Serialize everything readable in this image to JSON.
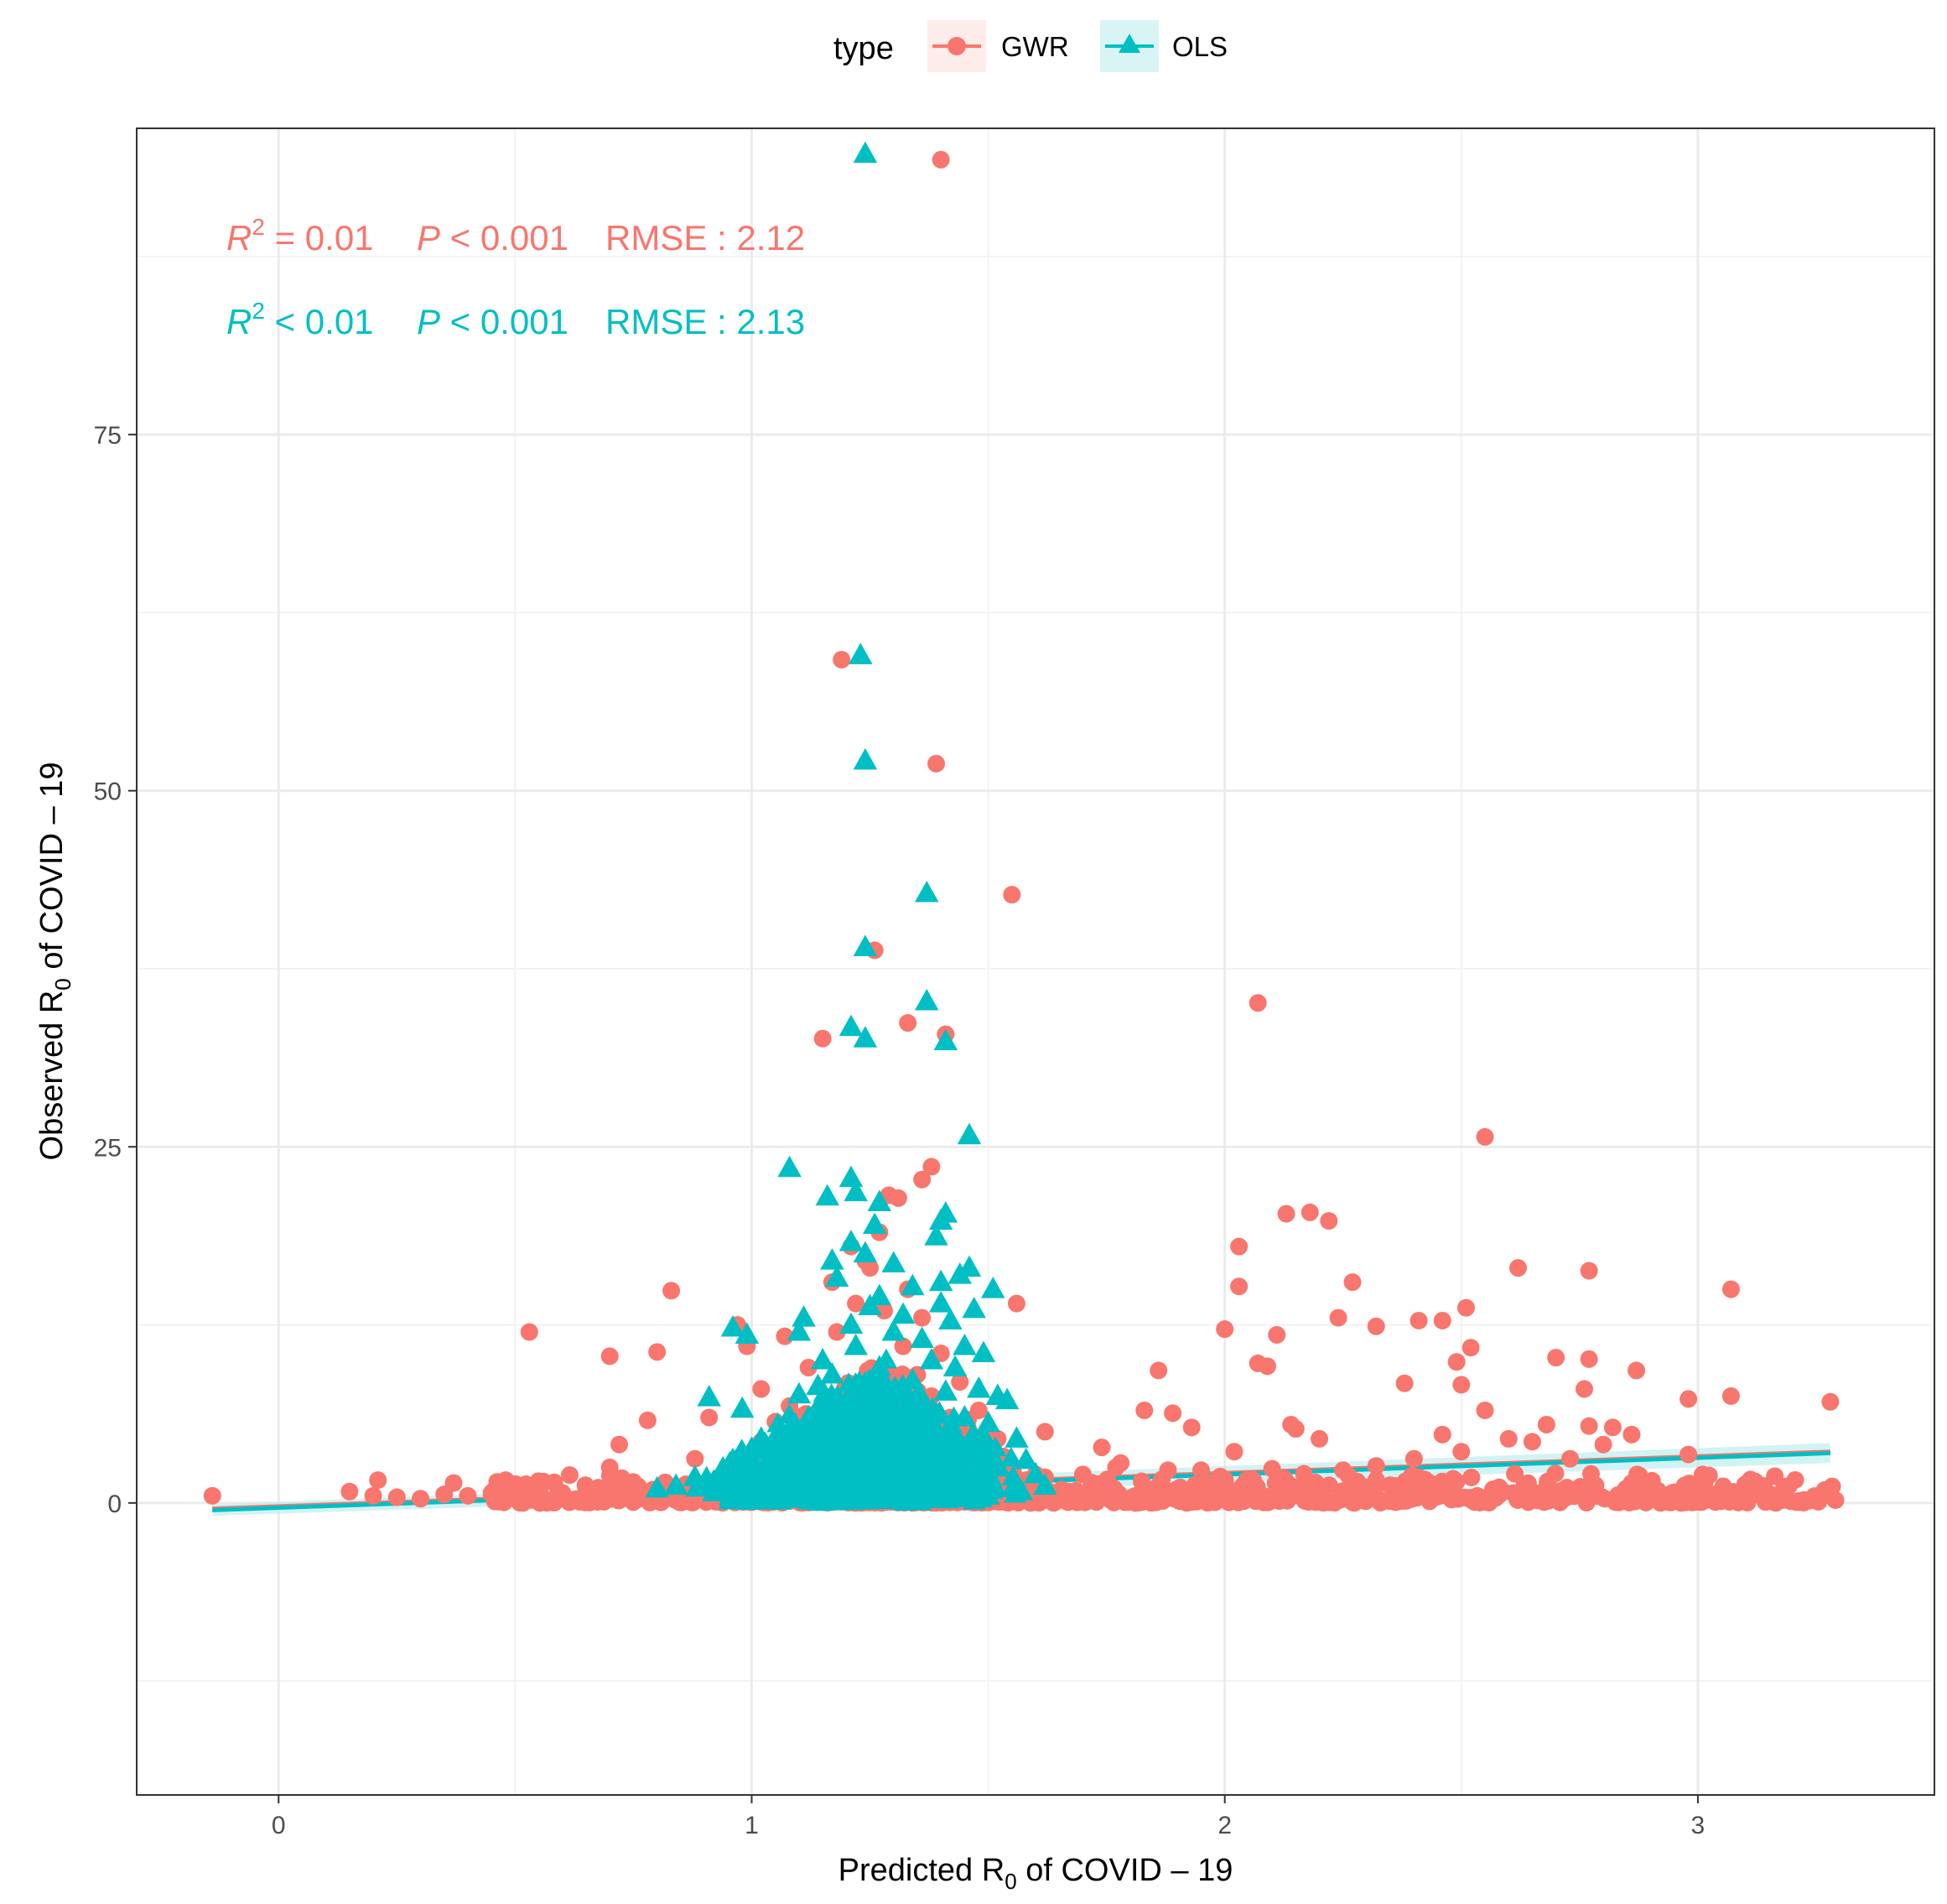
{
  "chart_data": {
    "type": "scatter",
    "xlabel_main": "Predicted R",
    "xlabel_sub": "0",
    "xlabel_rest": " of COVID – 19",
    "ylabel_main": "Observed R",
    "ylabel_sub": "0",
    "ylabel_rest": " of COVID – 19",
    "xlim": [
      -0.3,
      3.5
    ],
    "ylim": [
      -20.5,
      96.5
    ],
    "x_ticks": [
      0,
      1,
      2,
      3
    ],
    "x_tick_labels": [
      "0",
      "1",
      "2",
      "3"
    ],
    "y_ticks": [
      0,
      25,
      50,
      75
    ],
    "y_tick_labels": [
      "0",
      "25",
      "50",
      "75"
    ],
    "grid": true,
    "legend": {
      "title": "type",
      "position": "top",
      "entries": [
        {
          "label": "GWR",
          "shape": "circle",
          "color": "#F8766D"
        },
        {
          "label": "OLS",
          "shape": "triangle",
          "color": "#00BFC4"
        }
      ]
    },
    "annotations": [
      {
        "series": "GWR",
        "r2_sym": "R",
        "r2_exp": "2",
        "r2_rest": " = 0.01",
        "p_sym": "P",
        "p_rest": " < 0.001",
        "rmse": "RMSE : 2.12",
        "color": "#F8766D"
      },
      {
        "series": "OLS",
        "r2_sym": "R",
        "r2_exp": "2",
        "r2_rest": " < 0.01",
        "p_sym": "P",
        "p_rest": " < 0.001",
        "rmse": "RMSE : 2.13",
        "color": "#00BFC4"
      }
    ],
    "series": [
      {
        "name": "GWR",
        "color": "#F8766D",
        "shape": "circle",
        "points": [
          [
            1.4,
            94.3
          ],
          [
            1.19,
            59.2
          ],
          [
            1.39,
            51.9
          ],
          [
            1.55,
            42.7
          ],
          [
            1.26,
            38.8
          ],
          [
            1.33,
            33.7
          ],
          [
            1.15,
            32.6
          ],
          [
            1.41,
            32.9
          ],
          [
            2.07,
            35.1
          ],
          [
            2.55,
            25.7
          ],
          [
            1.38,
            23.6
          ],
          [
            1.36,
            22.7
          ],
          [
            1.31,
            21.4
          ],
          [
            1.29,
            21.6
          ],
          [
            2.13,
            20.3
          ],
          [
            2.18,
            20.4
          ],
          [
            2.22,
            19.8
          ],
          [
            2.03,
            18.0
          ],
          [
            2.62,
            16.5
          ],
          [
            2.77,
            16.3
          ],
          [
            2.27,
            15.5
          ],
          [
            2.03,
            15.2
          ],
          [
            3.07,
            15.0
          ],
          [
            1.56,
            14.0
          ],
          [
            0.83,
            14.9
          ],
          [
            2.51,
            13.7
          ],
          [
            2.24,
            13.0
          ],
          [
            2.41,
            12.8
          ],
          [
            2.46,
            12.8
          ],
          [
            2.32,
            12.4
          ],
          [
            0.53,
            12.0
          ],
          [
            0.97,
            12.5
          ],
          [
            2.0,
            12.2
          ],
          [
            2.11,
            11.8
          ],
          [
            0.99,
            11.0
          ],
          [
            1.07,
            11.7
          ],
          [
            0.7,
            10.3
          ],
          [
            0.8,
            10.6
          ],
          [
            2.52,
            10.9
          ],
          [
            2.49,
            9.9
          ],
          [
            2.7,
            10.2
          ],
          [
            2.77,
            10.1
          ],
          [
            2.07,
            9.8
          ],
          [
            2.09,
            9.6
          ],
          [
            1.86,
            9.3
          ],
          [
            2.87,
            9.3
          ],
          [
            2.38,
            8.4
          ],
          [
            2.5,
            8.3
          ],
          [
            2.76,
            8.0
          ],
          [
            3.07,
            7.5
          ],
          [
            2.98,
            7.3
          ],
          [
            3.28,
            7.1
          ],
          [
            1.83,
            6.5
          ],
          [
            1.89,
            6.3
          ],
          [
            2.14,
            5.5
          ],
          [
            2.15,
            5.2
          ],
          [
            2.55,
            6.5
          ],
          [
            2.77,
            5.4
          ],
          [
            2.82,
            5.3
          ],
          [
            2.86,
            4.8
          ],
          [
            2.8,
            4.1
          ],
          [
            2.68,
            5.5
          ],
          [
            0.78,
            5.8
          ],
          [
            0.91,
            6.0
          ],
          [
            1.05,
            5.7
          ],
          [
            1.62,
            5.0
          ],
          [
            1.93,
            5.3
          ],
          [
            2.02,
            3.6
          ],
          [
            2.2,
            4.5
          ],
          [
            2.46,
            4.8
          ],
          [
            2.6,
            4.5
          ],
          [
            2.65,
            4.3
          ],
          [
            2.73,
            3.1
          ],
          [
            2.98,
            3.4
          ],
          [
            3.01,
            2.0
          ],
          [
            3.1,
            1.3
          ],
          [
            2.94,
            0.5
          ],
          [
            2.76,
            1.0
          ],
          [
            2.78,
            1.1
          ],
          [
            2.5,
            3.6
          ],
          [
            2.4,
            3.1
          ],
          [
            2.32,
            2.6
          ],
          [
            2.25,
            2.3
          ],
          [
            2.1,
            2.4
          ],
          [
            1.88,
            2.3
          ],
          [
            1.77,
            2.5
          ],
          [
            1.7,
            2.0
          ],
          [
            1.62,
            1.8
          ],
          [
            1.58,
            1.6
          ],
          [
            1.5,
            1.5
          ],
          [
            1.45,
            1.3
          ],
          [
            1.4,
            1.2
          ],
          [
            1.35,
            1.4
          ],
          [
            1.3,
            1.1
          ],
          [
            1.25,
            1.4
          ],
          [
            1.2,
            1.0
          ],
          [
            1.15,
            1.3
          ],
          [
            1.1,
            1.2
          ],
          [
            1.05,
            1.0
          ],
          [
            1.0,
            0.9
          ],
          [
            0.95,
            1.1
          ],
          [
            0.9,
            0.8
          ],
          [
            0.85,
            1.0
          ],
          [
            0.8,
            0.7
          ],
          [
            0.75,
            0.9
          ],
          [
            0.7,
            0.6
          ],
          [
            0.65,
            0.8
          ],
          [
            0.6,
            0.7
          ],
          [
            0.55,
            0.5
          ],
          [
            0.5,
            0.6
          ],
          [
            0.45,
            0.7
          ],
          [
            0.4,
            0.5
          ],
          [
            0.35,
            0.6
          ],
          [
            0.3,
            0.3
          ],
          [
            0.25,
            0.4
          ],
          [
            0.2,
            0.5
          ],
          [
            0.15,
            0.8
          ],
          [
            -0.14,
            0.5
          ],
          [
            0.21,
            1.6
          ],
          [
            0.37,
            1.4
          ],
          [
            0.48,
            1.6
          ],
          [
            0.56,
            1.5
          ],
          [
            0.7,
            2.5
          ],
          [
            0.72,
            4.1
          ],
          [
            0.88,
            3.1
          ],
          [
            1.02,
            4.3
          ],
          [
            1.09,
            3.3
          ],
          [
            1.14,
            2.5
          ],
          [
            1.74,
            3.9
          ],
          [
            1.78,
            2.8
          ],
          [
            1.95,
            2.3
          ],
          [
            2.06,
            1.6
          ],
          [
            2.28,
            1.5
          ],
          [
            2.36,
            1.2
          ],
          [
            2.44,
            0.8
          ],
          [
            2.53,
            0.4
          ],
          [
            2.61,
            0.7
          ],
          [
            2.69,
            0.9
          ],
          [
            2.86,
            1.4
          ],
          [
            1.68,
            0.5
          ],
          [
            1.76,
            0.6
          ],
          [
            1.84,
            0.9
          ],
          [
            1.92,
            0.4
          ],
          [
            2.0,
            0.7
          ],
          [
            2.12,
            0.5
          ],
          [
            2.2,
            0.9
          ],
          [
            2.32,
            0.4
          ],
          [
            2.41,
            1.8
          ],
          [
            2.49,
            1.5
          ],
          [
            2.58,
            1.1
          ],
          [
            1.02,
            8.0
          ],
          [
            1.08,
            6.8
          ],
          [
            1.12,
            9.5
          ],
          [
            1.18,
            12.0
          ],
          [
            1.22,
            14.0
          ],
          [
            1.25,
            16.5
          ],
          [
            1.28,
            13.5
          ],
          [
            1.32,
            11.0
          ],
          [
            1.35,
            9.0
          ],
          [
            1.38,
            7.5
          ],
          [
            1.42,
            6.0
          ],
          [
            1.46,
            5.0
          ],
          [
            1.5,
            3.8
          ],
          [
            1.54,
            2.5
          ],
          [
            1.6,
            2.0
          ],
          [
            1.17,
            15.5
          ],
          [
            1.21,
            18.0
          ],
          [
            1.24,
            17.0
          ],
          [
            1.27,
            19.0
          ],
          [
            1.33,
            15.0
          ],
          [
            1.36,
            13.0
          ],
          [
            1.4,
            10.5
          ],
          [
            1.44,
            8.5
          ],
          [
            1.48,
            6.5
          ],
          [
            1.52,
            4.5
          ]
        ]
      },
      {
        "name": "OLS",
        "color": "#00BFC4",
        "shape": "triangle",
        "points": [
          [
            1.24,
            94.7
          ],
          [
            1.23,
            59.5
          ],
          [
            1.24,
            52.1
          ],
          [
            1.37,
            42.8
          ],
          [
            1.24,
            39.0
          ],
          [
            1.37,
            35.2
          ],
          [
            1.21,
            33.4
          ],
          [
            1.24,
            32.6
          ],
          [
            1.41,
            32.4
          ],
          [
            1.46,
            25.8
          ],
          [
            1.08,
            23.5
          ],
          [
            1.21,
            22.8
          ],
          [
            1.22,
            21.8
          ],
          [
            1.16,
            21.5
          ],
          [
            1.27,
            21.1
          ],
          [
            1.41,
            20.3
          ],
          [
            1.4,
            19.8
          ],
          [
            1.26,
            19.5
          ],
          [
            1.39,
            18.7
          ],
          [
            1.21,
            18.3
          ],
          [
            1.24,
            17.5
          ],
          [
            1.17,
            17.0
          ],
          [
            1.3,
            16.8
          ],
          [
            1.46,
            16.5
          ],
          [
            1.44,
            16.0
          ],
          [
            1.4,
            15.5
          ],
          [
            1.18,
            15.8
          ],
          [
            1.51,
            15.0
          ],
          [
            1.34,
            15.2
          ],
          [
            1.27,
            14.5
          ],
          [
            1.4,
            14.0
          ],
          [
            1.47,
            13.6
          ],
          [
            1.25,
            13.8
          ],
          [
            1.11,
            13.0
          ],
          [
            1.32,
            13.2
          ],
          [
            1.42,
            12.8
          ],
          [
            1.21,
            12.5
          ],
          [
            0.96,
            12.3
          ],
          [
            0.99,
            11.8
          ],
          [
            1.1,
            12.0
          ],
          [
            1.3,
            12.0
          ],
          [
            1.36,
            11.5
          ],
          [
            1.45,
            11.0
          ],
          [
            1.49,
            10.5
          ],
          [
            1.22,
            11.0
          ],
          [
            1.15,
            10.0
          ],
          [
            1.38,
            10.0
          ],
          [
            1.43,
            9.5
          ],
          [
            1.27,
            9.5
          ],
          [
            1.17,
            9.0
          ],
          [
            1.48,
            8.0
          ],
          [
            1.52,
            7.5
          ],
          [
            1.54,
            7.2
          ],
          [
            0.91,
            7.4
          ],
          [
            0.98,
            6.6
          ],
          [
            1.1,
            7.6
          ],
          [
            1.14,
            8.2
          ],
          [
            1.34,
            8.6
          ],
          [
            1.41,
            7.8
          ],
          [
            1.2,
            7.0
          ],
          [
            1.28,
            6.5
          ],
          [
            1.35,
            6.2
          ],
          [
            1.45,
            6.0
          ],
          [
            1.5,
            5.6
          ],
          [
            1.12,
            6.0
          ],
          [
            1.06,
            5.2
          ],
          [
            1.02,
            4.5
          ],
          [
            1.0,
            3.8
          ],
          [
            0.95,
            2.5
          ],
          [
            0.92,
            1.5
          ],
          [
            0.88,
            1.8
          ],
          [
            0.84,
            1.2
          ],
          [
            0.8,
            1.0
          ],
          [
            1.56,
            4.5
          ],
          [
            1.58,
            3.0
          ],
          [
            1.6,
            2.0
          ],
          [
            1.62,
            1.2
          ],
          [
            1.57,
            0.8
          ],
          [
            1.18,
            5.0
          ],
          [
            1.23,
            4.0
          ],
          [
            1.29,
            3.5
          ],
          [
            1.33,
            2.8
          ],
          [
            1.37,
            2.2
          ],
          [
            1.43,
            1.8
          ],
          [
            1.47,
            1.0
          ],
          [
            1.25,
            1.5
          ],
          [
            1.2,
            2.5
          ],
          [
            1.14,
            3.2
          ],
          [
            1.08,
            2.0
          ],
          [
            1.04,
            1.0
          ],
          [
            1.3,
            0.8
          ],
          [
            1.4,
            0.5
          ],
          [
            1.5,
            0.5
          ],
          [
            1.1,
            0.6
          ],
          [
            1.0,
            0.5
          ]
        ]
      }
    ],
    "fit_lines": [
      {
        "series": "GWR",
        "x": [
          -0.14,
          3.28
        ],
        "y": [
          -0.4,
          3.6
        ],
        "color": "#F8766D"
      },
      {
        "series": "OLS",
        "x": [
          -0.14,
          3.28
        ],
        "y": [
          -0.5,
          3.5
        ],
        "color": "#00BFC4"
      }
    ]
  }
}
